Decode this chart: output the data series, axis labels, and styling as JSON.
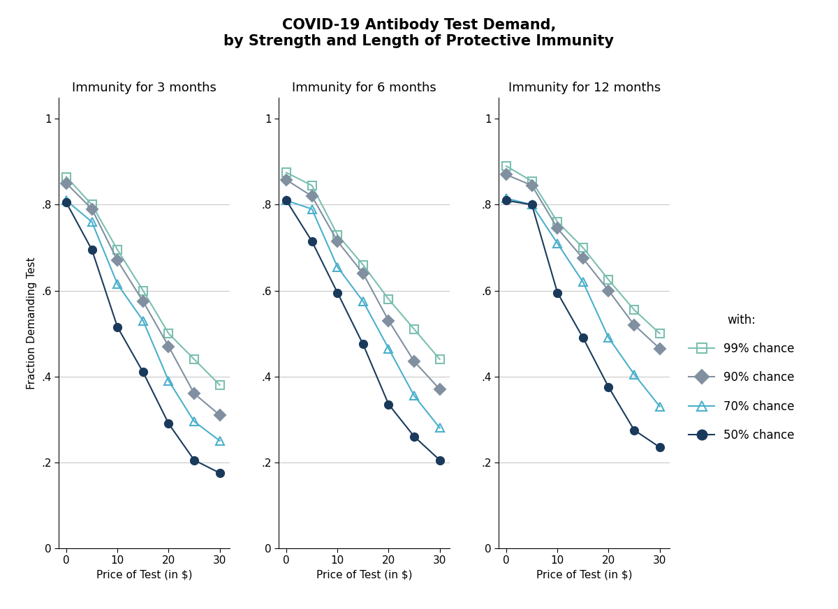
{
  "title": "COVID-19 Antibody Test Demand,\nby Strength and Length of Protective Immunity",
  "subplot_titles": [
    "Immunity for 3 months",
    "Immunity for 6 months",
    "Immunity for 12 months"
  ],
  "xlabel": "Price of Test (in $)",
  "ylabel": "Fraction Demanding Test",
  "x_prices": [
    0,
    5,
    10,
    15,
    20,
    25,
    30
  ],
  "series": {
    "99%": {
      "label": "99% chance",
      "color": "#7abfb0",
      "marker": "s",
      "fillstyle": "none",
      "data_3m": [
        0.865,
        0.8,
        0.695,
        0.6,
        0.5,
        0.44,
        0.38
      ],
      "data_6m": [
        0.875,
        0.845,
        0.73,
        0.66,
        0.58,
        0.51,
        0.44
      ],
      "data_12m": [
        0.89,
        0.855,
        0.76,
        0.7,
        0.625,
        0.555,
        0.5
      ]
    },
    "90%": {
      "label": "90% chance",
      "color": "#8090a0",
      "marker": "D",
      "fillstyle": "full",
      "data_3m": [
        0.85,
        0.79,
        0.67,
        0.575,
        0.47,
        0.36,
        0.31
      ],
      "data_6m": [
        0.858,
        0.82,
        0.715,
        0.64,
        0.53,
        0.435,
        0.37
      ],
      "data_12m": [
        0.87,
        0.845,
        0.745,
        0.675,
        0.6,
        0.52,
        0.465
      ]
    },
    "70%": {
      "label": "70% chance",
      "color": "#4ab0cc",
      "marker": "^",
      "fillstyle": "none",
      "data_3m": [
        0.81,
        0.76,
        0.615,
        0.53,
        0.39,
        0.295,
        0.25
      ],
      "data_6m": [
        0.81,
        0.79,
        0.655,
        0.575,
        0.465,
        0.355,
        0.28
      ],
      "data_12m": [
        0.815,
        0.8,
        0.71,
        0.62,
        0.49,
        0.405,
        0.33
      ]
    },
    "50%": {
      "label": "50% chance",
      "color": "#1a3a5c",
      "marker": "o",
      "fillstyle": "full",
      "data_3m": [
        0.805,
        0.695,
        0.515,
        0.41,
        0.29,
        0.205,
        0.175
      ],
      "data_6m": [
        0.81,
        0.715,
        0.595,
        0.475,
        0.335,
        0.26,
        0.205
      ],
      "data_12m": [
        0.81,
        0.8,
        0.595,
        0.49,
        0.375,
        0.275,
        0.235
      ]
    }
  },
  "ylim": [
    0,
    1.05
  ],
  "yticks": [
    0,
    0.2,
    0.4,
    0.6,
    0.8,
    1.0
  ],
  "ytick_labels": [
    "0",
    ".2",
    ".4",
    ".6",
    ".8",
    "1"
  ],
  "xticks": [
    0,
    10,
    20,
    30
  ],
  "background_color": "#ffffff",
  "grid_color": "#c8c8c8",
  "title_fontsize": 15,
  "subplot_title_fontsize": 13,
  "axis_label_fontsize": 11,
  "tick_fontsize": 11,
  "legend_fontsize": 12
}
